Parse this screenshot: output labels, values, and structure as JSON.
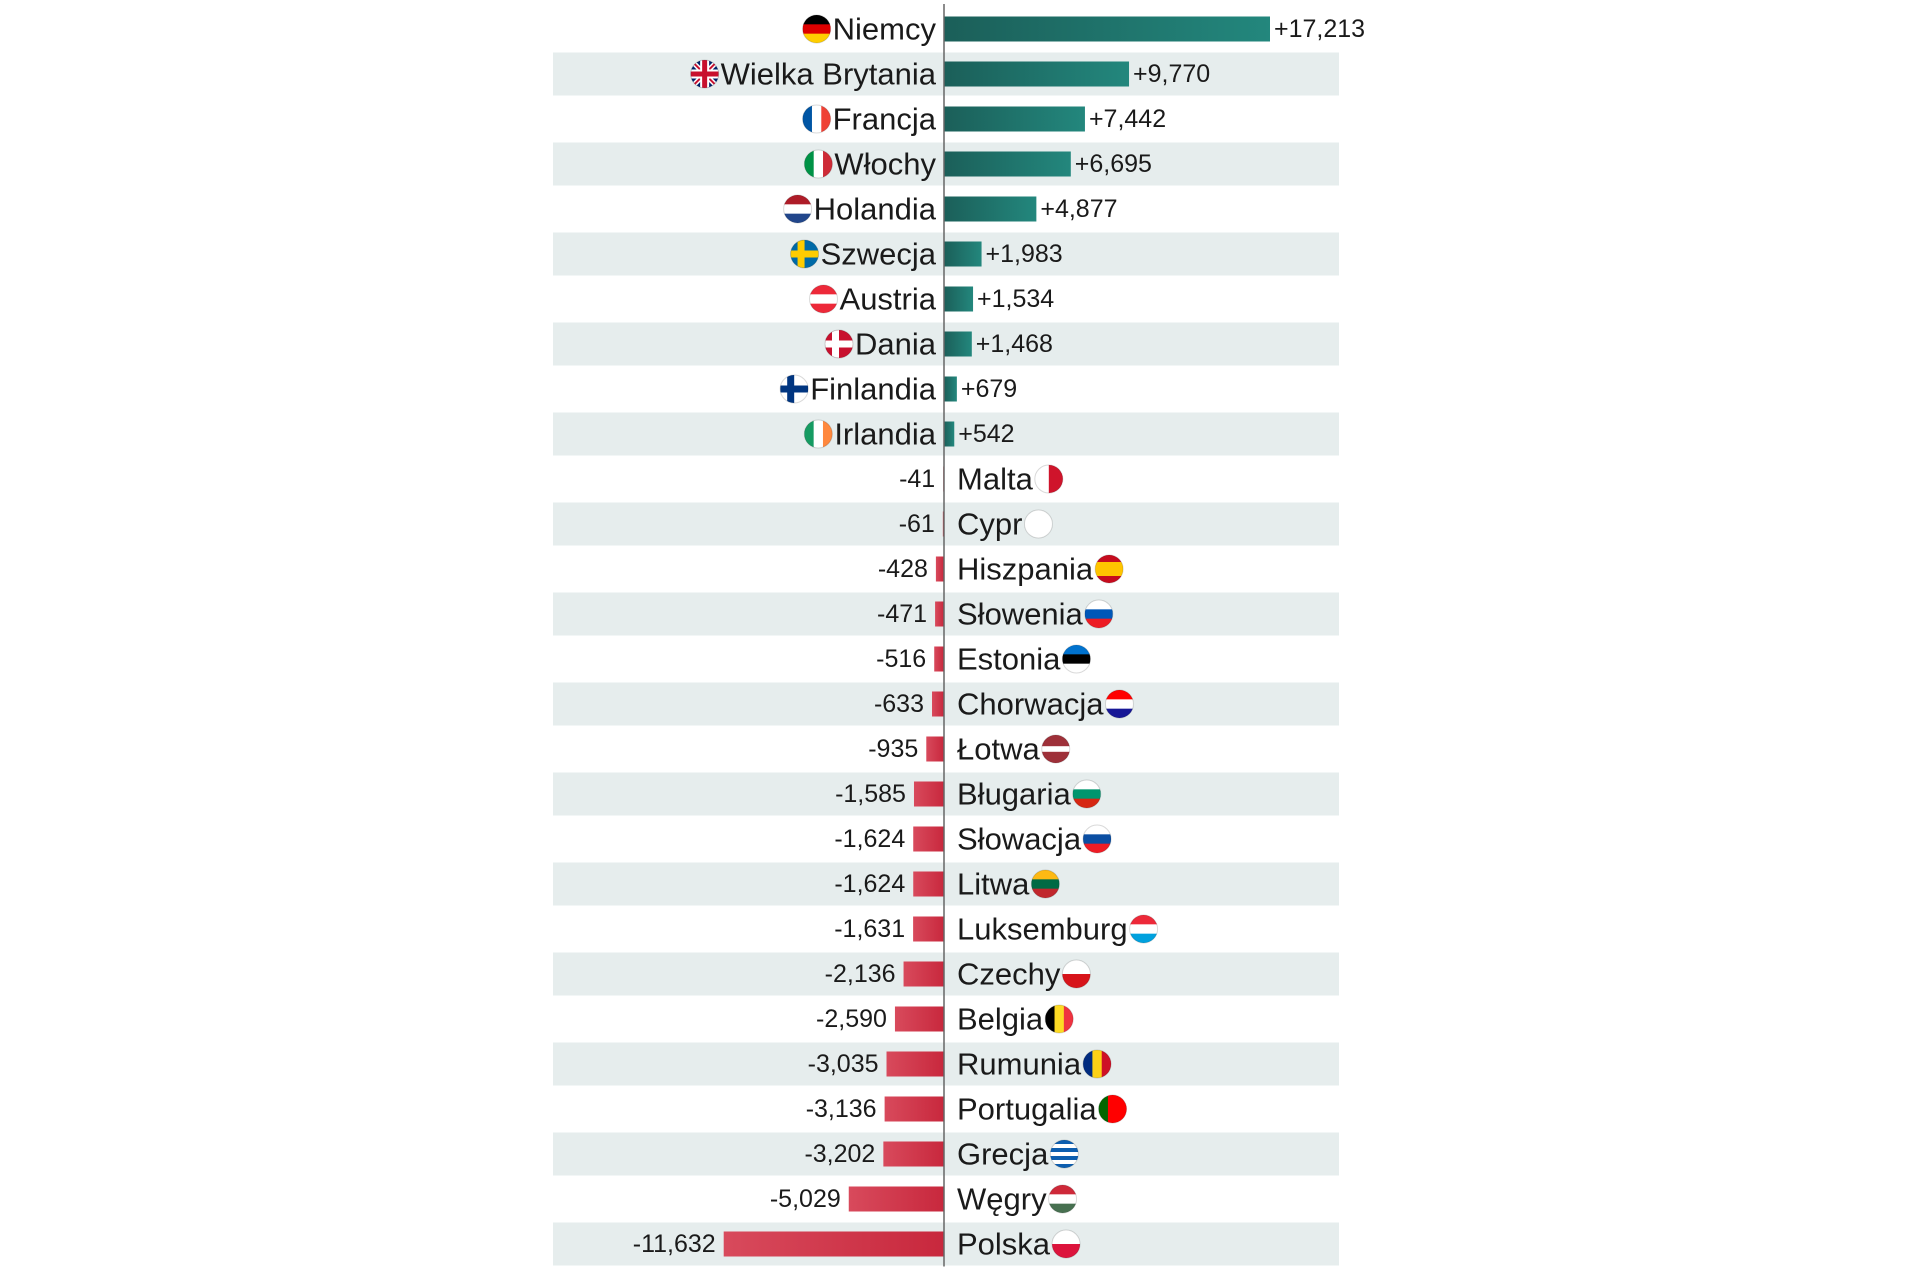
{
  "chart_data": {
    "type": "bar",
    "orientation": "horizontal",
    "categories": [
      "Niemcy",
      "Wielka Brytania",
      "Francja",
      "Włochy",
      "Holandia",
      "Szwecja",
      "Austria",
      "Dania",
      "Finlandia",
      "Irlandia",
      "Malta",
      "Cypr",
      "Hiszpania",
      "Słowenia",
      "Estonia",
      "Chorwacja",
      "Łotwa",
      "Bługaria",
      "Słowacja",
      "Litwa",
      "Luksemburg",
      "Czechy",
      "Belgia",
      "Rumunia",
      "Portugalia",
      "Grecja",
      "Węgry",
      "Polska"
    ],
    "values": [
      17213,
      9770,
      7442,
      6695,
      4877,
      1983,
      1534,
      1468,
      679,
      542,
      -41,
      -61,
      -428,
      -471,
      -516,
      -633,
      -935,
      -1585,
      -1624,
      -1624,
      -1631,
      -2136,
      -2590,
      -3035,
      -3136,
      -3202,
      -5029,
      -11632
    ],
    "value_labels": [
      "+17,213",
      "+9,770",
      "+7,442",
      "+6,695",
      "+4,877",
      "+1,983",
      "+1,534",
      "+1,468",
      "+679",
      "+542",
      "-41",
      "-61",
      "-428",
      "-471",
      "-516",
      "-633",
      "-935",
      "-1,585",
      "-1,624",
      "-1,624",
      "-1,631",
      "-2,136",
      "-2,590",
      "-3,035",
      "-3,136",
      "-3,202",
      "-5,029",
      "-11,632"
    ],
    "positive_color": "#23877d",
    "negative_color": "#c8283d"
  }
}
